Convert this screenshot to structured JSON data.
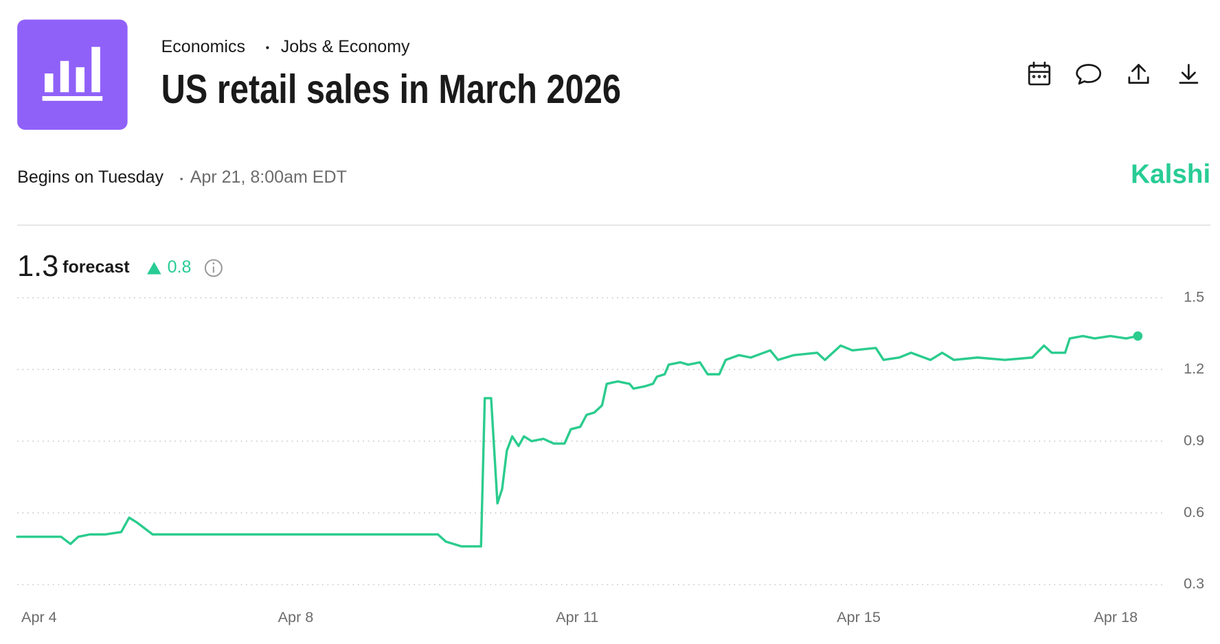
{
  "header": {
    "category": "Economics",
    "subcategory": "Jobs & Economy",
    "title": "US retail sales in March 2026",
    "begins": "Begins on Tuesday",
    "begins_time": "Apr 21, 8:00am EDT",
    "brand": "Kalshi",
    "forecast_value": "1.3",
    "forecast_label": "forecast",
    "forecast_change": "0.8"
  },
  "chart_data": {
    "type": "line",
    "color": "#2bcc8e",
    "grid": true,
    "x": [
      0,
      0.93,
      1.87,
      2.27,
      2.6,
      3.1,
      3.77,
      4.43,
      4.77,
      5.1,
      5.77,
      6.93,
      8.6,
      10.6,
      12.6,
      14.6,
      16.6,
      17.93,
      18.27,
      18.93,
      19.77,
      19.93,
      20.2,
      20.47,
      20.67,
      20.87,
      21.1,
      21.37,
      21.6,
      21.93,
      22.43,
      22.87,
      23.33,
      23.6,
      24,
      24.27,
      24.6,
      24.93,
      25.13,
      25.6,
      26.1,
      26.27,
      26.77,
      27.1,
      27.27,
      27.6,
      27.77,
      28.27,
      28.6,
      29.1,
      29.43,
      29.93,
      30.2,
      30.77,
      31.27,
      32.1,
      32.43,
      33.1,
      34.1,
      34.43,
      35.1,
      35.6,
      36.6,
      36.93,
      37.6,
      38.1,
      38.93,
      39.43,
      39.93,
      40.93,
      42.1,
      43.27,
      43.77,
      44.1,
      44.67,
      44.87,
      45.43,
      45.93,
      46.6,
      47.27,
      47.77
    ],
    "values": [
      0.5,
      0.5,
      0.5,
      0.47,
      0.5,
      0.51,
      0.51,
      0.52,
      0.58,
      0.56,
      0.51,
      0.51,
      0.51,
      0.51,
      0.51,
      0.51,
      0.51,
      0.51,
      0.48,
      0.46,
      0.46,
      1.08,
      1.08,
      0.64,
      0.7,
      0.86,
      0.92,
      0.88,
      0.92,
      0.9,
      0.91,
      0.89,
      0.89,
      0.95,
      0.96,
      1.01,
      1.02,
      1.05,
      1.14,
      1.15,
      1.14,
      1.12,
      1.13,
      1.14,
      1.17,
      1.18,
      1.22,
      1.23,
      1.22,
      1.23,
      1.18,
      1.18,
      1.24,
      1.26,
      1.25,
      1.28,
      1.24,
      1.26,
      1.27,
      1.24,
      1.3,
      1.28,
      1.29,
      1.24,
      1.25,
      1.27,
      1.24,
      1.27,
      1.24,
      1.25,
      1.24,
      1.25,
      1.3,
      1.27,
      1.27,
      1.33,
      1.34,
      1.33,
      1.34,
      1.33,
      1.34
    ],
    "xlim": [
      0,
      47.77
    ],
    "xticks": [
      {
        "value": 0.93,
        "label": "Apr 4"
      },
      {
        "value": 11.87,
        "label": "Apr 8"
      },
      {
        "value": 23.87,
        "label": "Apr 11"
      },
      {
        "value": 35.87,
        "label": "Apr 15"
      },
      {
        "value": 46.83,
        "label": "Apr 18"
      }
    ],
    "ylim": [
      0.3,
      1.5
    ],
    "yticks": [
      0.3,
      0.6,
      0.9,
      1.2,
      1.5
    ]
  }
}
